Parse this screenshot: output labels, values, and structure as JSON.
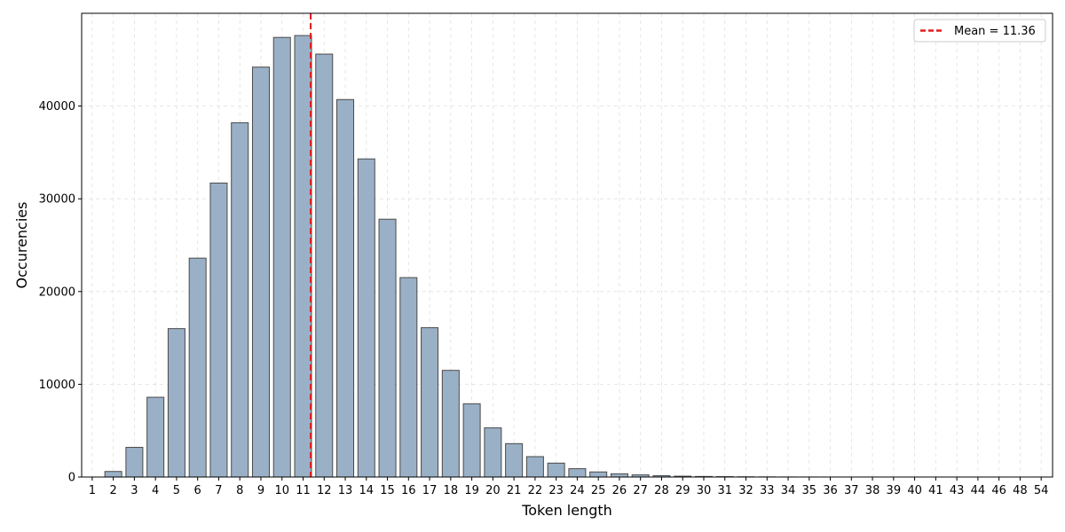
{
  "chart_data": {
    "type": "bar",
    "title": "",
    "xlabel": "Token length",
    "ylabel": "Occurencies",
    "categories": [
      "1",
      "2",
      "3",
      "4",
      "5",
      "6",
      "7",
      "8",
      "9",
      "10",
      "11",
      "12",
      "13",
      "14",
      "15",
      "16",
      "17",
      "18",
      "19",
      "20",
      "21",
      "22",
      "23",
      "24",
      "25",
      "26",
      "27",
      "28",
      "29",
      "30",
      "31",
      "32",
      "33",
      "34",
      "35",
      "36",
      "37",
      "38",
      "39",
      "40",
      "41",
      "43",
      "44",
      "46",
      "48",
      "54"
    ],
    "values": [
      0,
      600,
      3200,
      8600,
      16000,
      23600,
      31700,
      38200,
      44200,
      47400,
      47600,
      45600,
      40700,
      34300,
      27800,
      21500,
      16100,
      11500,
      7900,
      5300,
      3600,
      2200,
      1500,
      900,
      550,
      350,
      230,
      140,
      90,
      60,
      40,
      25,
      15,
      8,
      5,
      3,
      2,
      2,
      1,
      1,
      1,
      1,
      1,
      1,
      1,
      1
    ],
    "ylim": [
      0,
      50000
    ],
    "yticks": [
      0,
      10000,
      20000,
      30000,
      40000
    ],
    "mean": 11.36,
    "legend": {
      "label": "Mean = 11.36",
      "position": "top-right"
    },
    "grid": true,
    "colors": {
      "bar_fill": "#9ab0c6",
      "bar_edge": "#4a4a4a",
      "mean_line": "#e31a1c",
      "grid": "#e0e0e0"
    }
  }
}
